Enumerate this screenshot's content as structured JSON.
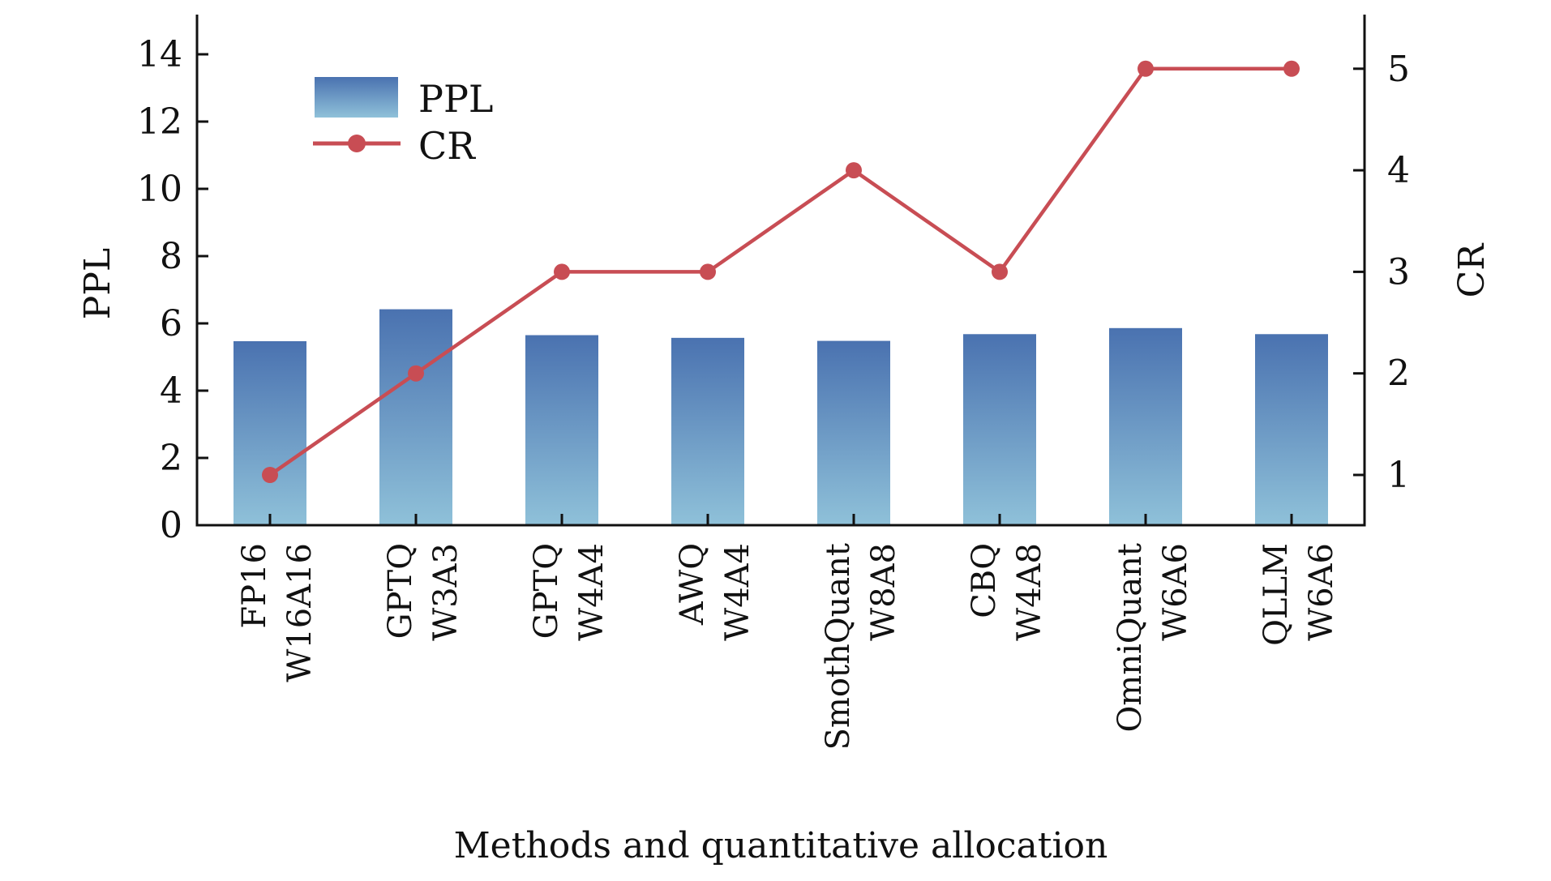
{
  "chart_data": {
    "type": "bar",
    "title": "",
    "xlabel": "Methods and quantitative allocation",
    "ylabel": "PPL",
    "y2label": "CR",
    "ylim": [
      0,
      15
    ],
    "y2lim": [
      0.5,
      5.55
    ],
    "yticks": [
      0,
      2,
      4,
      6,
      8,
      10,
      12,
      14
    ],
    "y2ticks": [
      1,
      2,
      3,
      4,
      5
    ],
    "grid": false,
    "legend_position": "top-left",
    "categories": [
      [
        "FP16",
        "W16A16"
      ],
      [
        "GPTQ",
        "W3A3"
      ],
      [
        "GPTQ",
        "W4A4"
      ],
      [
        "AWQ",
        "W4A4"
      ],
      [
        "SmothQuant",
        "W8A8"
      ],
      [
        "CBQ",
        "W4A8"
      ],
      [
        "OmniQuant",
        "W6A6"
      ],
      [
        "QLLM",
        "W6A6"
      ]
    ],
    "series": [
      {
        "name": "PPL",
        "type": "bar",
        "axis": "left",
        "values": [
          5.47,
          6.42,
          5.65,
          5.57,
          5.48,
          5.68,
          5.86,
          5.68
        ]
      },
      {
        "name": "CR",
        "type": "line",
        "axis": "right",
        "values": [
          1,
          2,
          3,
          3,
          4,
          3,
          5,
          5
        ]
      }
    ],
    "colors": {
      "bar_top": "#4a72b0",
      "bar_bottom": "#8fc1d9",
      "line": "#c84d54",
      "axis": "#111111"
    }
  }
}
